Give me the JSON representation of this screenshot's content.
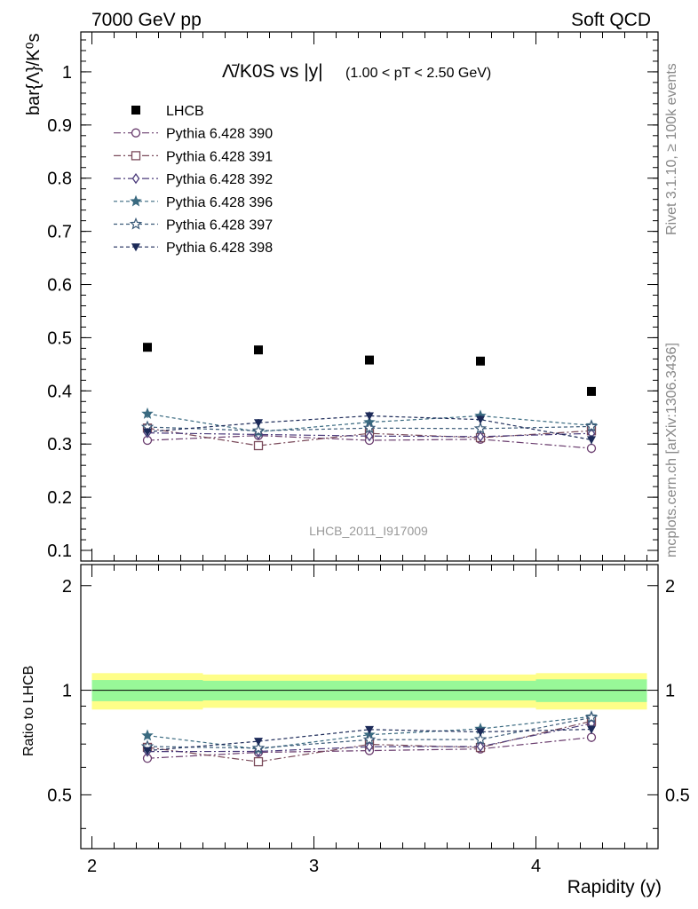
{
  "header": {
    "left": "7000 GeV pp",
    "right": "Soft QCD"
  },
  "side": {
    "rivet": "Rivet 3.1.10, ≥ 100k events",
    "mcplots": "mcplots.cern.ch [arXiv:1306.3436]"
  },
  "watermark": "LHCB_2011_I917009",
  "chart_data": [
    {
      "type": "scatter",
      "panel": "main",
      "title": "Λ̄/K0S vs |y|",
      "subtitle": "(1.00 < pT < 2.50 GeV)",
      "ylabel": "bar{Λ}/K⁰s",
      "ylim": [
        0.08,
        1.075
      ],
      "yticks": [
        0.1,
        0.2,
        0.3,
        0.4,
        0.5,
        0.6,
        0.7,
        0.8,
        0.9,
        1
      ],
      "ytick_labels": [
        "0.1",
        "0.2",
        "0.3",
        "0.4",
        "0.5",
        "0.6",
        "0.7",
        "0.8",
        "0.9",
        "1"
      ],
      "xlim": [
        1.95,
        4.55
      ],
      "x": [
        2.25,
        2.75,
        3.25,
        3.75,
        4.25
      ],
      "legend_position": "top-left",
      "grid": false,
      "data": {
        "name": "LHCB",
        "values": [
          0.482,
          0.477,
          0.458,
          0.456,
          0.399
        ],
        "rel_uncertainty": [
          {
            "lo": 2.0,
            "hi": 2.5,
            "inner": 0.07,
            "outer": 0.12
          },
          {
            "lo": 2.5,
            "hi": 3.0,
            "inner": 0.065,
            "outer": 0.11
          },
          {
            "lo": 3.0,
            "hi": 3.5,
            "inner": 0.065,
            "outer": 0.11
          },
          {
            "lo": 3.5,
            "hi": 4.0,
            "inner": 0.065,
            "outer": 0.11
          },
          {
            "lo": 4.0,
            "hi": 4.5,
            "inner": 0.075,
            "outer": 0.12
          }
        ]
      },
      "series": [
        {
          "name": "Pythia 6.428 390",
          "marker": "open-circle",
          "color": "#6a3d6e",
          "dash": "8,3,2,3",
          "values": [
            0.307,
            0.316,
            0.307,
            0.309,
            0.292
          ],
          "err": [
            0.006,
            0.006,
            0.006,
            0.006,
            0.009
          ]
        },
        {
          "name": "Pythia 6.428 391",
          "marker": "open-square",
          "color": "#7a4a5a",
          "dash": "8,3,2,3",
          "values": [
            0.33,
            0.297,
            0.32,
            0.312,
            0.325
          ],
          "err": [
            0.006,
            0.006,
            0.006,
            0.006,
            0.009
          ]
        },
        {
          "name": "Pythia 6.428 392",
          "marker": "open-diamond",
          "color": "#4a3a7a",
          "dash": "8,3,2,3",
          "values": [
            0.321,
            0.318,
            0.315,
            0.314,
            0.32
          ],
          "err": [
            0.006,
            0.006,
            0.006,
            0.006,
            0.009
          ]
        },
        {
          "name": "Pythia 6.428 396",
          "marker": "star",
          "color": "#3a6a80",
          "dash": "4,3",
          "values": [
            0.357,
            0.323,
            0.341,
            0.353,
            0.335
          ],
          "err": [
            0.008,
            0.007,
            0.007,
            0.007,
            0.009
          ]
        },
        {
          "name": "Pythia 6.428 397",
          "marker": "open-star",
          "color": "#3a5a78",
          "dash": "4,3",
          "values": [
            0.332,
            0.325,
            0.33,
            0.329,
            0.333
          ],
          "err": [
            0.007,
            0.007,
            0.007,
            0.007,
            0.009
          ]
        },
        {
          "name": "Pythia 6.428 398",
          "marker": "down-triangle",
          "color": "#1c2a58",
          "dash": "4,3",
          "values": [
            0.323,
            0.34,
            0.353,
            0.346,
            0.308
          ],
          "err": [
            0.007,
            0.007,
            0.008,
            0.008,
            0.009
          ]
        }
      ]
    },
    {
      "type": "scatter",
      "panel": "ratio",
      "ylabel": "Ratio to LHCB",
      "xlabel": "Rapidity (y)",
      "ylim": [
        0.35,
        2.3
      ],
      "scale": "log",
      "yticks": [
        0.5,
        1,
        2
      ],
      "ytick_labels": [
        "0.5",
        "1",
        "2"
      ],
      "xlim": [
        1.95,
        4.55
      ],
      "xticks": [
        2,
        3,
        4
      ],
      "xtick_labels": [
        "2",
        "3",
        "4"
      ]
    }
  ]
}
